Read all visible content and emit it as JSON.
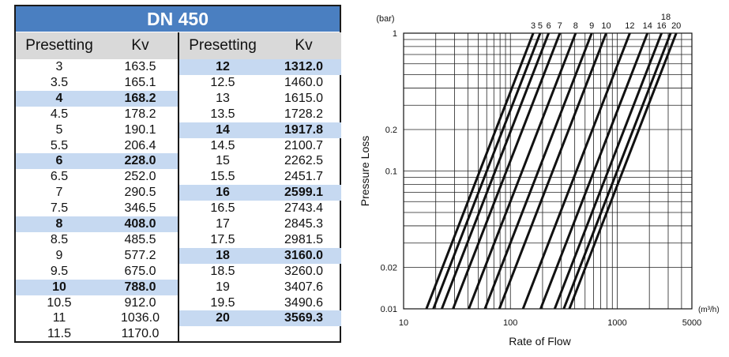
{
  "table": {
    "title": "DN 450",
    "col_presetting": "Presetting",
    "col_kv": "Kv",
    "left_rows": [
      {
        "presetting": "3",
        "kv": "163.5",
        "bold": false
      },
      {
        "presetting": "3.5",
        "kv": "165.1",
        "bold": false
      },
      {
        "presetting": "4",
        "kv": "168.2",
        "bold": true
      },
      {
        "presetting": "4.5",
        "kv": "178.2",
        "bold": false
      },
      {
        "presetting": "5",
        "kv": "190.1",
        "bold": false
      },
      {
        "presetting": "5.5",
        "kv": "206.4",
        "bold": false
      },
      {
        "presetting": "6",
        "kv": "228.0",
        "bold": true
      },
      {
        "presetting": "6.5",
        "kv": "252.0",
        "bold": false
      },
      {
        "presetting": "7",
        "kv": "290.5",
        "bold": false
      },
      {
        "presetting": "7.5",
        "kv": "346.5",
        "bold": false
      },
      {
        "presetting": "8",
        "kv": "408.0",
        "bold": true
      },
      {
        "presetting": "8.5",
        "kv": "485.5",
        "bold": false
      },
      {
        "presetting": "9",
        "kv": "577.2",
        "bold": false
      },
      {
        "presetting": "9.5",
        "kv": "675.0",
        "bold": false
      },
      {
        "presetting": "10",
        "kv": "788.0",
        "bold": true
      },
      {
        "presetting": "10.5",
        "kv": "912.0",
        "bold": false
      },
      {
        "presetting": "11",
        "kv": "1036.0",
        "bold": false
      },
      {
        "presetting": "11.5",
        "kv": "1170.0",
        "bold": false
      }
    ],
    "right_rows": [
      {
        "presetting": "12",
        "kv": "1312.0",
        "bold": true
      },
      {
        "presetting": "12.5",
        "kv": "1460.0",
        "bold": false
      },
      {
        "presetting": "13",
        "kv": "1615.0",
        "bold": false
      },
      {
        "presetting": "13.5",
        "kv": "1728.2",
        "bold": false
      },
      {
        "presetting": "14",
        "kv": "1917.8",
        "bold": true
      },
      {
        "presetting": "14.5",
        "kv": "2100.7",
        "bold": false
      },
      {
        "presetting": "15",
        "kv": "2262.5",
        "bold": false
      },
      {
        "presetting": "15.5",
        "kv": "2451.7",
        "bold": false
      },
      {
        "presetting": "16",
        "kv": "2599.1",
        "bold": true
      },
      {
        "presetting": "16.5",
        "kv": "2743.4",
        "bold": false
      },
      {
        "presetting": "17",
        "kv": "2845.3",
        "bold": false
      },
      {
        "presetting": "17.5",
        "kv": "2981.5",
        "bold": false
      },
      {
        "presetting": "18",
        "kv": "3160.0",
        "bold": true
      },
      {
        "presetting": "18.5",
        "kv": "3260.0",
        "bold": false
      },
      {
        "presetting": "19",
        "kv": "3407.6",
        "bold": false
      },
      {
        "presetting": "19.5",
        "kv": "3490.6",
        "bold": false
      },
      {
        "presetting": "20",
        "kv": "3569.3",
        "bold": true
      }
    ],
    "colors": {
      "title_bg": "#4a7fc1",
      "header_bg": "#d9d9d9",
      "highlight_bg": "#c6d9f1"
    }
  },
  "chart_data": {
    "type": "line",
    "xlabel": "Rate of Flow",
    "ylabel": "Pressure Loss",
    "x_unit": "(m³/h)",
    "y_unit": "(bar)",
    "x_scale": "log",
    "y_scale": "log",
    "xlim": [
      10,
      5000
    ],
    "ylim": [
      0.01,
      1
    ],
    "x_ticks": [
      10,
      100,
      1000,
      5000
    ],
    "x_tick_labels": [
      "10",
      "100",
      "1000",
      "5000"
    ],
    "y_ticks": [
      0.01,
      0.02,
      0.1,
      0.2,
      1
    ],
    "y_tick_labels": [
      "0.01",
      "0.02",
      "0.1",
      "0.2",
      "1"
    ],
    "grid": true,
    "series": [
      {
        "name": "3",
        "kv": 163.5,
        "x": [
          16.35,
          163.5
        ],
        "y": [
          0.01,
          1
        ]
      },
      {
        "name": "5",
        "kv": 190.1,
        "x": [
          19.01,
          190.1
        ],
        "y": [
          0.01,
          1
        ]
      },
      {
        "name": "6",
        "kv": 228.0,
        "x": [
          22.8,
          228.0
        ],
        "y": [
          0.01,
          1
        ]
      },
      {
        "name": "7",
        "kv": 290.5,
        "x": [
          29.05,
          290.5
        ],
        "y": [
          0.01,
          1
        ]
      },
      {
        "name": "8",
        "kv": 408.0,
        "x": [
          40.8,
          408.0
        ],
        "y": [
          0.01,
          1
        ]
      },
      {
        "name": "9",
        "kv": 577.2,
        "x": [
          57.72,
          577.2
        ],
        "y": [
          0.01,
          1
        ]
      },
      {
        "name": "10",
        "kv": 788.0,
        "x": [
          78.8,
          788.0
        ],
        "y": [
          0.01,
          1
        ]
      },
      {
        "name": "12",
        "kv": 1312.0,
        "x": [
          131.2,
          1312.0
        ],
        "y": [
          0.01,
          1
        ]
      },
      {
        "name": "14",
        "kv": 1917.8,
        "x": [
          191.78,
          1917.8
        ],
        "y": [
          0.01,
          1
        ]
      },
      {
        "name": "16",
        "kv": 2599.1,
        "x": [
          259.91,
          2599.1
        ],
        "y": [
          0.01,
          1
        ]
      },
      {
        "name": "18",
        "kv": 3160.0,
        "x": [
          316.0,
          3160.0
        ],
        "y": [
          0.01,
          1
        ]
      },
      {
        "name": "20",
        "kv": 3569.3,
        "x": [
          356.93,
          3569.3
        ],
        "y": [
          0.01,
          1
        ]
      }
    ]
  }
}
